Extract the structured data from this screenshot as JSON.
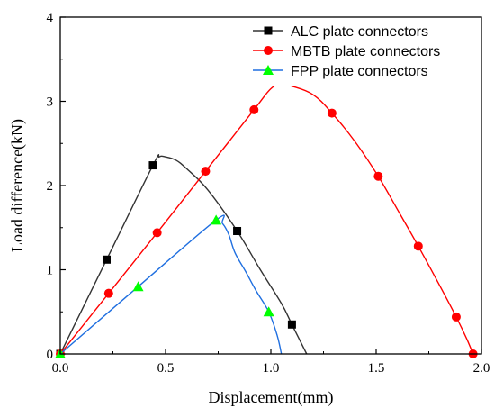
{
  "chart_data": {
    "type": "line",
    "title": "",
    "xlabel": "Displacement(mm)",
    "ylabel": "Load difference(kN)",
    "xlim": [
      0,
      2.0
    ],
    "ylim": [
      0,
      4
    ],
    "x_ticks": [
      "0.0",
      "0.5",
      "1.0",
      "1.5",
      "2.0"
    ],
    "y_ticks": [
      "0",
      "1",
      "2",
      "3",
      "4"
    ],
    "grid": false,
    "legend_position": "top-right",
    "series": [
      {
        "name": "ALC plate connectors",
        "color": "#333333",
        "marker": "square",
        "marker_color": "#000000",
        "curve": [
          [
            0,
            0
          ],
          [
            0.22,
            1.12
          ],
          [
            0.44,
            2.24
          ],
          [
            0.47,
            2.34
          ],
          [
            0.5,
            2.34
          ],
          [
            0.55,
            2.3
          ],
          [
            0.6,
            2.2
          ],
          [
            0.7,
            1.95
          ],
          [
            0.84,
            1.46
          ],
          [
            0.95,
            1.0
          ],
          [
            1.05,
            0.6
          ],
          [
            1.1,
            0.35
          ],
          [
            1.17,
            0
          ]
        ],
        "markers": [
          [
            0,
            0
          ],
          [
            0.22,
            1.12
          ],
          [
            0.44,
            2.24
          ],
          [
            0.84,
            1.46
          ],
          [
            1.1,
            0.35
          ]
        ]
      },
      {
        "name": "MBTB plate connectors",
        "color": "#ff0000",
        "marker": "circle",
        "marker_color": "#ff0000",
        "curve": [
          [
            0,
            0
          ],
          [
            0.23,
            0.72
          ],
          [
            0.46,
            1.44
          ],
          [
            0.69,
            2.17
          ],
          [
            0.92,
            2.9
          ],
          [
            1.0,
            3.15
          ],
          [
            1.05,
            3.2
          ],
          [
            1.1,
            3.18
          ],
          [
            1.2,
            3.08
          ],
          [
            1.29,
            2.86
          ],
          [
            1.4,
            2.52
          ],
          [
            1.51,
            2.11
          ],
          [
            1.6,
            1.72
          ],
          [
            1.7,
            1.28
          ],
          [
            1.8,
            0.82
          ],
          [
            1.88,
            0.44
          ],
          [
            1.93,
            0.18
          ],
          [
            1.96,
            0
          ]
        ],
        "markers": [
          [
            0,
            0
          ],
          [
            0.23,
            0.72
          ],
          [
            0.46,
            1.44
          ],
          [
            0.69,
            2.17
          ],
          [
            0.92,
            2.9
          ],
          [
            1.29,
            2.86
          ],
          [
            1.51,
            2.11
          ],
          [
            1.7,
            1.28
          ],
          [
            1.88,
            0.44
          ],
          [
            1.96,
            0
          ]
        ]
      },
      {
        "name": "FPP plate connectors",
        "color": "#1f6fe0",
        "marker": "triangle",
        "marker_color": "#00ff00",
        "curve": [
          [
            0,
            0
          ],
          [
            0.37,
            0.8
          ],
          [
            0.74,
            1.59
          ],
          [
            0.77,
            1.55
          ],
          [
            0.8,
            1.42
          ],
          [
            0.83,
            1.2
          ],
          [
            0.88,
            0.98
          ],
          [
            0.93,
            0.75
          ],
          [
            0.99,
            0.5
          ],
          [
            1.03,
            0.22
          ],
          [
            1.05,
            0
          ]
        ],
        "markers": [
          [
            0,
            0
          ],
          [
            0.37,
            0.8
          ],
          [
            0.74,
            1.59
          ],
          [
            0.99,
            0.5
          ]
        ]
      }
    ]
  }
}
